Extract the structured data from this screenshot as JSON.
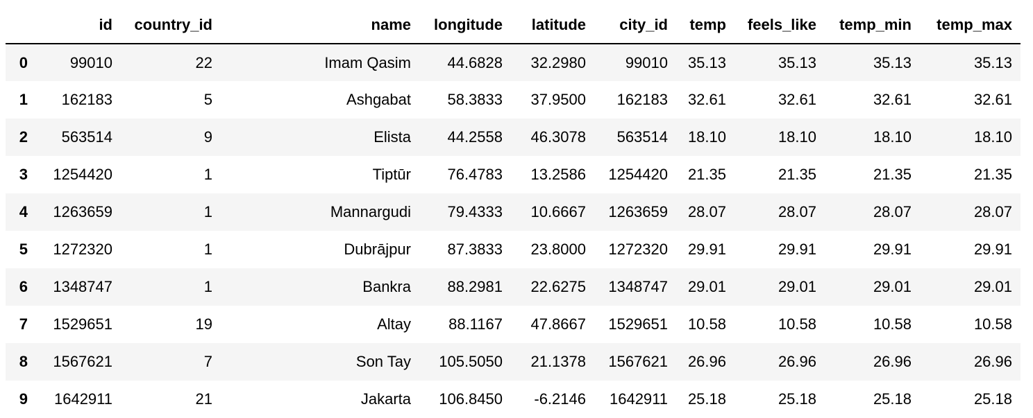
{
  "table": {
    "columns": [
      "",
      "id",
      "country_id",
      "name",
      "longitude",
      "latitude",
      "city_id",
      "temp",
      "feels_like",
      "temp_min",
      "temp_max"
    ],
    "rows": [
      [
        "0",
        "99010",
        "22",
        "Imam Qasim",
        "44.6828",
        "32.2980",
        "99010",
        "35.13",
        "35.13",
        "35.13",
        "35.13"
      ],
      [
        "1",
        "162183",
        "5",
        "Ashgabat",
        "58.3833",
        "37.9500",
        "162183",
        "32.61",
        "32.61",
        "32.61",
        "32.61"
      ],
      [
        "2",
        "563514",
        "9",
        "Elista",
        "44.2558",
        "46.3078",
        "563514",
        "18.10",
        "18.10",
        "18.10",
        "18.10"
      ],
      [
        "3",
        "1254420",
        "1",
        "Tiptūr",
        "76.4783",
        "13.2586",
        "1254420",
        "21.35",
        "21.35",
        "21.35",
        "21.35"
      ],
      [
        "4",
        "1263659",
        "1",
        "Mannargudi",
        "79.4333",
        "10.6667",
        "1263659",
        "28.07",
        "28.07",
        "28.07",
        "28.07"
      ],
      [
        "5",
        "1272320",
        "1",
        "Dubrājpur",
        "87.3833",
        "23.8000",
        "1272320",
        "29.91",
        "29.91",
        "29.91",
        "29.91"
      ],
      [
        "6",
        "1348747",
        "1",
        "Bankra",
        "88.2981",
        "22.6275",
        "1348747",
        "29.01",
        "29.01",
        "29.01",
        "29.01"
      ],
      [
        "7",
        "1529651",
        "19",
        "Altay",
        "88.1167",
        "47.8667",
        "1529651",
        "10.58",
        "10.58",
        "10.58",
        "10.58"
      ],
      [
        "8",
        "1567621",
        "7",
        "Son Tay",
        "105.5050",
        "21.1378",
        "1567621",
        "26.96",
        "26.96",
        "26.96",
        "26.96"
      ],
      [
        "9",
        "1642911",
        "21",
        "Jakarta",
        "106.8450",
        "-6.2146",
        "1642911",
        "25.18",
        "25.18",
        "25.18",
        "25.18"
      ]
    ]
  }
}
